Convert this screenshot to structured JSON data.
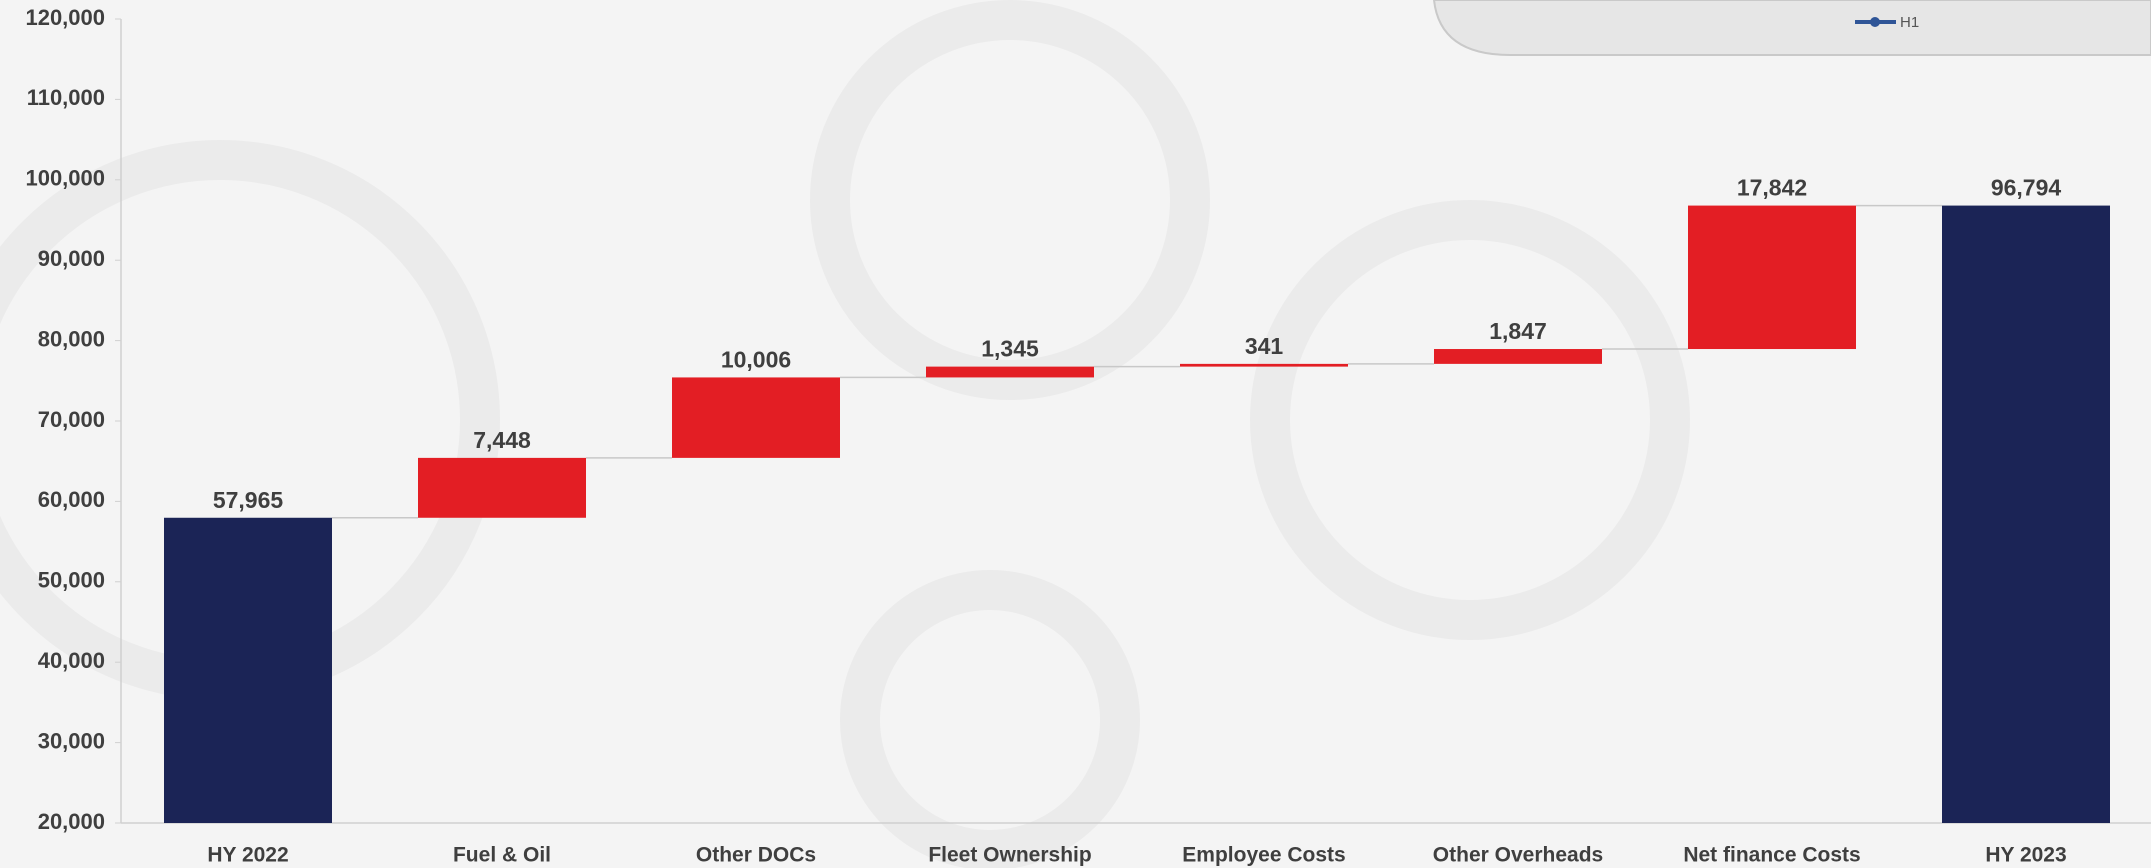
{
  "chart_data": {
    "type": "waterfall",
    "categories": [
      "HY 2022",
      "Fuel & Oil",
      "Other DOCs",
      "Fleet Ownership",
      "Employee Costs",
      "Other Overheads",
      "Net finance Costs",
      "HY 2023"
    ],
    "series": [
      {
        "name": "H1",
        "color": "#2f5597",
        "values": [
          57965,
          7448,
          10006,
          1345,
          341,
          1847,
          17842,
          96794
        ],
        "value_labels": [
          "57,965",
          "7,448",
          "10,006",
          "1,345",
          "341",
          "1,847",
          "17,842",
          "96,794"
        ]
      }
    ],
    "is_total": [
      true,
      false,
      false,
      false,
      false,
      false,
      false,
      true
    ],
    "total_color": "#1b2456",
    "increase_color": "#e31e24",
    "ylim": [
      20000,
      120000
    ],
    "yticks": [
      {
        "value": 20000,
        "label": "20,000"
      },
      {
        "value": 30000,
        "label": "30,000"
      },
      {
        "value": 40000,
        "label": "40,000"
      },
      {
        "value": 50000,
        "label": "50,000"
      },
      {
        "value": 60000,
        "label": "60,000"
      },
      {
        "value": 70000,
        "label": "70,000"
      },
      {
        "value": 80000,
        "label": "80,000"
      },
      {
        "value": 90000,
        "label": "90,000"
      },
      {
        "value": 100000,
        "label": "100,000"
      },
      {
        "value": 110000,
        "label": "110,000"
      },
      {
        "value": 120000,
        "label": "120,000"
      }
    ],
    "legend": "top-right"
  }
}
